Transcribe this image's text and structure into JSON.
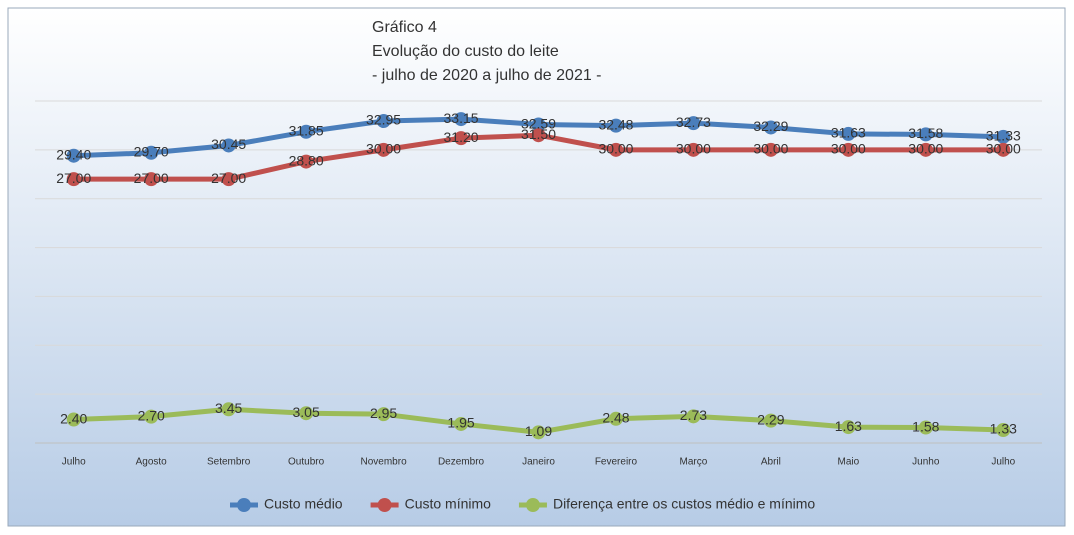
{
  "chart_data": {
    "type": "line",
    "title": [
      "Gráfico 4",
      "Evolução do custo do leite",
      "- julho de 2020 a julho de 2021 -"
    ],
    "categories": [
      "Julho",
      "Agosto",
      "Setembro",
      "Outubro",
      "Novembro",
      "Dezembro",
      "Janeiro",
      "Fevereiro",
      "Março",
      "Abril",
      "Maio",
      "Junho",
      "Julho"
    ],
    "series": [
      {
        "name": "Custo médio",
        "color": "#4a7ebb",
        "values": [
          29.4,
          29.7,
          30.45,
          31.85,
          32.95,
          33.15,
          32.59,
          32.48,
          32.73,
          32.29,
          31.63,
          31.58,
          31.33
        ],
        "value_labels": [
          "29.40",
          "29.70",
          "30.45",
          "31.85",
          "32.95",
          "33.15",
          "32.59",
          "32.48",
          "32.73",
          "32.29",
          "31.63",
          "31.58",
          "31.33"
        ]
      },
      {
        "name": "Custo mínimo",
        "color": "#c0504d",
        "values": [
          27,
          27,
          27,
          28.8,
          30,
          31.2,
          31.5,
          30,
          30,
          30,
          30,
          30,
          30
        ],
        "value_labels": [
          "27.00",
          "27.00",
          "27.00",
          "28.80",
          "30.00",
          "31.20",
          "31.50",
          "30.00",
          "30.00",
          "30.00",
          "30.00",
          "30.00",
          "30.00"
        ]
      },
      {
        "name": "Diferença entre os custos médio e mínimo",
        "color": "#9bbb59",
        "values": [
          2.4,
          2.7,
          3.45,
          3.05,
          2.95,
          1.95,
          1.09,
          2.48,
          2.73,
          2.29,
          1.63,
          1.58,
          1.33
        ],
        "value_labels": [
          "2.40",
          "2.70",
          "3.45",
          "3.05",
          "2.95",
          "1.95",
          "1.09",
          "2.48",
          "2.73",
          "2.29",
          "1.63",
          "1.58",
          "1.33"
        ]
      }
    ],
    "ylim": [
      0,
      35
    ],
    "yticks": [
      0,
      5,
      10,
      15,
      20,
      25,
      30,
      35
    ],
    "grid": true,
    "legend": "bottom"
  }
}
